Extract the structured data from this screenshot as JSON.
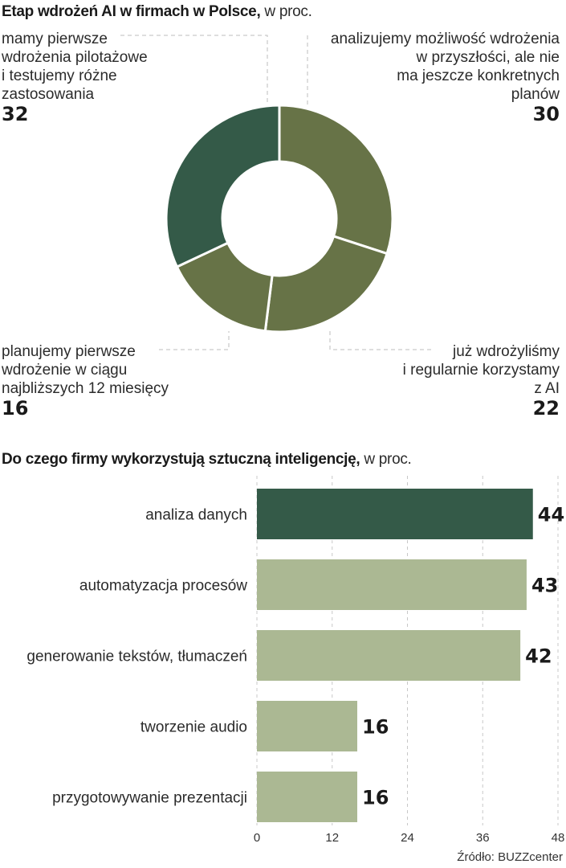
{
  "chart_data": [
    {
      "type": "pie",
      "title": "Etap wdrożeń AI w firmach w Polsce,",
      "subtitle": "w proc.",
      "categories": [
        "analizujemy możliwość wdrożenia w przyszłości, ale nie ma jeszcze konkretnych planów",
        "już wdrożyliśmy i regularnie korzystamy z AI",
        "planujemy pierwsze wdrożenie w ciągu najbliższych 12 miesięcy",
        "mamy pierwsze wdrożenia pilotażowe i testujemy różne zastosowania"
      ],
      "values": [
        30,
        22,
        16,
        32
      ],
      "colors": [
        "#677347",
        "#677347",
        "#677347",
        "#345a48"
      ]
    },
    {
      "type": "bar",
      "orientation": "horizontal",
      "title": "Do czego firmy wykorzystują sztuczną inteligencję,",
      "subtitle": "w proc.",
      "categories": [
        "analiza danych",
        "automatyzacja procesów",
        "generowanie tekstów, tłumaczeń",
        "tworzenie audio",
        "przygotowywanie prezentacji"
      ],
      "values": [
        44,
        43,
        42,
        16,
        16
      ],
      "colors": [
        "#345a48",
        "#abb893",
        "#abb893",
        "#abb893",
        "#abb893"
      ],
      "xlim": [
        0,
        48
      ],
      "xticks": [
        0,
        12,
        24,
        36,
        48
      ],
      "grid": true
    }
  ],
  "donut_labels": {
    "pilot": {
      "lines": [
        "mamy pierwsze",
        "wdrożenia pilotażowe",
        "i testujemy różne",
        "zastosowania"
      ],
      "value": "32"
    },
    "future": {
      "lines": [
        "analizujemy możliwość wdrożenia",
        "w przyszłości, ale nie",
        "ma jeszcze konkretnych",
        "planów"
      ],
      "value": "30"
    },
    "plan": {
      "lines": [
        "planujemy pierwsze",
        "wdrożenie w ciągu",
        "najbliższych 12 miesięcy"
      ],
      "value": "16"
    },
    "done": {
      "lines": [
        "już wdrożyliśmy",
        "i regularnie korzystamy",
        "z AI"
      ],
      "value": "22"
    }
  },
  "source": "Źródło: BUZZcenter"
}
